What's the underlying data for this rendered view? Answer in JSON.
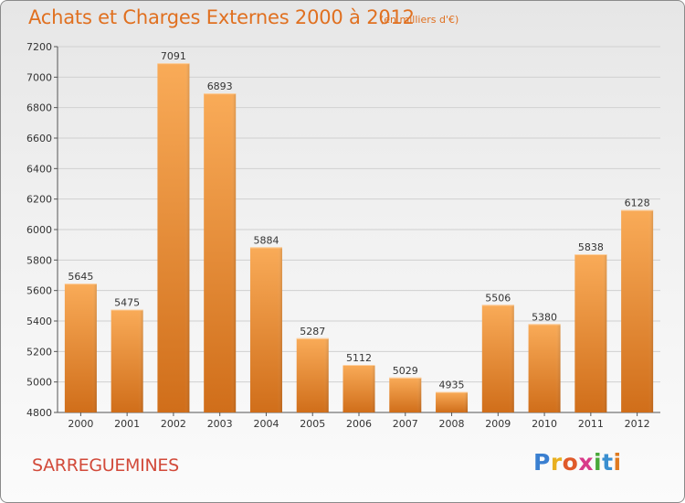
{
  "title": "Achats et Charges Externes 2000 à 2012",
  "subtitle": "(en milliers d'€)",
  "place": "SARREGUEMINES",
  "logo": {
    "letters": [
      "P",
      "r",
      "o",
      "x",
      "i",
      "t",
      "i"
    ],
    "colors": [
      "#3a7fd0",
      "#e8b020",
      "#e05a2a",
      "#d83a8a",
      "#4aa83a",
      "#3a8fd0",
      "#e07a20"
    ]
  },
  "colors": {
    "title": "#e07020",
    "bar_light": "#f8a956",
    "bar_dark": "#d4701c",
    "place": "#d24a3a"
  },
  "chart_data": {
    "type": "bar",
    "title": "Achats et Charges Externes 2000 à 2012",
    "subtitle": "(en milliers d'€)",
    "categories": [
      "2000",
      "2001",
      "2002",
      "2003",
      "2004",
      "2005",
      "2006",
      "2007",
      "2008",
      "2009",
      "2010",
      "2011",
      "2012"
    ],
    "values": [
      5645,
      5475,
      7091,
      6893,
      5884,
      5287,
      5112,
      5029,
      4935,
      5506,
      5380,
      5838,
      6128
    ],
    "value_labels": [
      "5645",
      "5475",
      "7091",
      "6893",
      "5884",
      "5287",
      "5112",
      "5029",
      "4935",
      "5506",
      "5380",
      "5838",
      "6128"
    ],
    "y_ticks": [
      "4800",
      "5000",
      "5200",
      "5400",
      "5600",
      "5800",
      "6000",
      "6200",
      "6400",
      "6600",
      "6800",
      "7000",
      "7200"
    ],
    "ylim": [
      4800,
      7200
    ],
    "grid": true,
    "legend": "none"
  }
}
